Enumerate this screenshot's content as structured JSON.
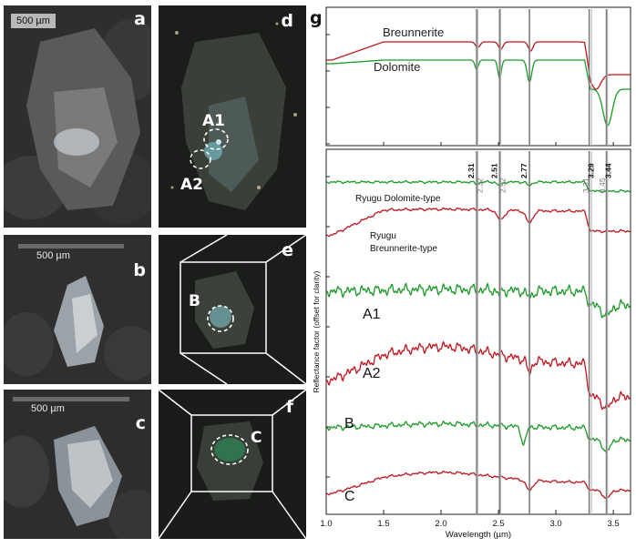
{
  "panels": {
    "a": {
      "label": "a",
      "scale": "500 µm"
    },
    "b": {
      "label": "b",
      "scale": "500 µm"
    },
    "c": {
      "label": "c",
      "scale": "500 µm"
    },
    "d": {
      "label": "d",
      "regions": [
        "A1",
        "A2"
      ]
    },
    "e": {
      "label": "e",
      "regions": [
        "B"
      ]
    },
    "f": {
      "label": "f",
      "regions": [
        "C"
      ]
    }
  },
  "chart_data": {
    "type": "line",
    "panel_label": "g",
    "xlabel": "Wavelength (µm)",
    "ylabel": "Reflectance factor (offset for clarity)",
    "xlim": [
      1.0,
      3.65
    ],
    "x_ticks": [
      "1.0",
      "1.5",
      "2.0",
      "2.5",
      "3.0",
      "3.5"
    ],
    "reference_lines": [
      "2.31",
      "2.32",
      "2.51",
      "2.52",
      "2.77",
      "3.29",
      "3.31",
      "3.44",
      "3.45"
    ],
    "reference_bold": [
      "2.31",
      "2.51",
      "2.77",
      "3.29",
      "3.44"
    ],
    "reference_lines_values": [
      2.31,
      2.32,
      2.51,
      2.52,
      2.77,
      3.29,
      3.31,
      3.44,
      3.45
    ],
    "colors": {
      "breunnerite": "#c0141e",
      "dolomite": "#1a9a26",
      "lines": "#9a9a9a"
    },
    "reference_spectra": [
      {
        "name": "Breunnerite",
        "color": "#c0141e"
      },
      {
        "name": "Dolomite",
        "color": "#1a9a26"
      }
    ],
    "series": [
      {
        "name": "Ryugu Dolomite-type",
        "color": "#1a9a26"
      },
      {
        "name": "Ryugu Breunnerite-type",
        "name_lines": [
          "Ryugu",
          "Breunnerite-type"
        ],
        "color": "#c0141e"
      },
      {
        "name": "A1",
        "color": "#1a9a26"
      },
      {
        "name": "A2",
        "color": "#c0141e"
      },
      {
        "name": "B",
        "color": "#1a9a26"
      },
      {
        "name": "C",
        "color": "#c0141e"
      }
    ]
  }
}
